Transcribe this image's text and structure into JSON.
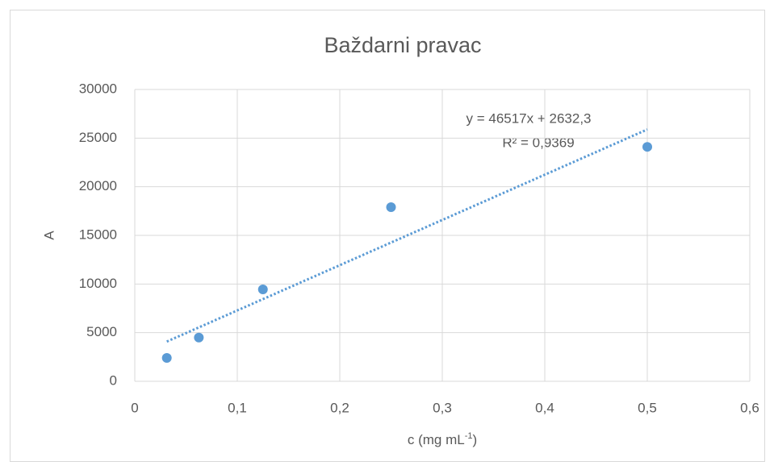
{
  "chart_data": {
    "type": "scatter",
    "title": "Baždarni pravac",
    "xlabel": {
      "text": "c (mg mL",
      "superscript": "-1",
      "suffix": ")"
    },
    "ylabel": "A",
    "series": [
      {
        "name": "A",
        "color": "#5b9bd5",
        "x": [
          0.03125,
          0.0625,
          0.125,
          0.25,
          0.5
        ],
        "values": [
          2400,
          4500,
          9450,
          17900,
          24100
        ]
      }
    ],
    "trendline": {
      "slope": 46517,
      "intercept": 2632.3,
      "color": "#5b9bd5",
      "equation": "y = 46517x + 2632,3",
      "r_squared": "R² = 0,9369"
    },
    "xlim": [
      0,
      0.6
    ],
    "xticks": [
      0,
      {
        "value": 0.1,
        "label": "0,1"
      },
      {
        "value": 0.2,
        "label": "0,2"
      },
      {
        "value": 0.3,
        "label": "0,3"
      },
      {
        "value": 0.4,
        "label": "0,4"
      },
      {
        "value": 0.5,
        "label": "0,5"
      },
      {
        "value": 0.6,
        "label": "0,6"
      }
    ],
    "ylim": [
      0,
      30000
    ],
    "yticks": [
      0,
      5000,
      10000,
      15000,
      20000,
      25000,
      30000
    ],
    "grid": true
  }
}
